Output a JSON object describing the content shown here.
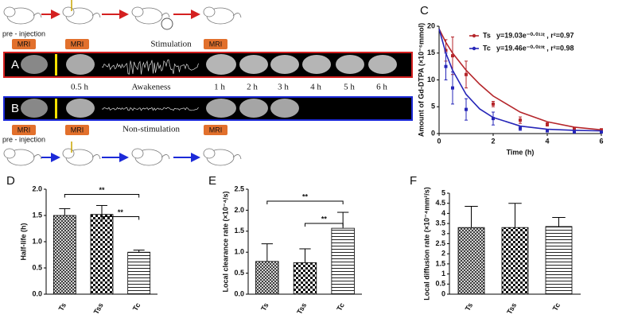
{
  "figure": {
    "panel_labels": [
      "A",
      "B",
      "C",
      "D",
      "E",
      "F"
    ],
    "protocol_top": {
      "pre_injection": "pre - injection",
      "stimulation": "Stimulation",
      "mri": [
        "MRI",
        "MRI",
        "MRI"
      ]
    },
    "row_a": {
      "time_labels": [
        "0.5 h",
        "1 h",
        "2 h",
        "3 h",
        "4 h",
        "5 h",
        "6 h"
      ],
      "state": "Awakeness"
    },
    "row_b": {
      "state": "Non-stimulation"
    },
    "protocol_bottom": {
      "pre_injection": "pre - injection",
      "mri": [
        "MRI",
        "MRI",
        "MRI"
      ]
    }
  },
  "chart_data": [
    {
      "type": "scatter",
      "x_label": "Time (h)",
      "y_label": "Amount of Gd-DTPA (×10⁻⁶mmol)",
      "xlim": [
        0,
        6
      ],
      "xticks": [
        0,
        2,
        4,
        6
      ],
      "ylim": [
        0,
        20
      ],
      "yticks": [
        0,
        5,
        10,
        15,
        20
      ],
      "x": [
        0.25,
        0.5,
        1,
        2,
        3,
        4,
        5,
        6
      ],
      "fit_x": [
        0,
        0.25,
        0.5,
        1,
        1.5,
        2,
        3,
        4,
        5,
        6
      ],
      "series": [
        {
          "name": "Ts",
          "fit_label": "y=19.03e⁻⁰·⁰¹¹ᵗ , r²=0.97",
          "color": "#b5262b",
          "values": [
            15.5,
            14.5,
            11,
            5.5,
            2.5,
            1.7,
            0.9,
            0.7
          ],
          "errors": [
            2,
            3.5,
            2.5,
            0.5,
            0.6,
            0.3,
            0.2,
            0.2
          ],
          "fit_values": [
            19.5,
            17,
            15,
            11.8,
            9.2,
            7,
            4,
            2.2,
            1.2,
            0.7
          ]
        },
        {
          "name": "Tc",
          "fit_label": "y=19.46e⁻⁰·⁰²³ᵗ , r²=0.98",
          "color": "#2626b8",
          "values": [
            12.5,
            8.5,
            4.5,
            2.8,
            1,
            0.5,
            0.3,
            0.3
          ],
          "errors": [
            2.5,
            3,
            2,
            1.2,
            0.4,
            0.2,
            0.1,
            0.1
          ],
          "fit_values": [
            19.5,
            15,
            11.8,
            7.3,
            4.6,
            3,
            1.4,
            0.8,
            0.6,
            0.5
          ]
        }
      ]
    },
    {
      "type": "bar",
      "y_label": "Half-life (h)",
      "categories": [
        "Ts",
        "Tss",
        "Tc"
      ],
      "values": [
        1.5,
        1.52,
        0.8
      ],
      "errors": [
        0.13,
        0.17,
        0.04
      ],
      "patterns": [
        "crosshatch",
        "checker",
        "stripes"
      ],
      "ylim": [
        0,
        2
      ],
      "yticks": [
        {
          "value": 0,
          "label": "0.0"
        },
        0.5,
        {
          "value": 1,
          "label": "1.0"
        },
        1.5,
        {
          "value": 2,
          "label": "2.0"
        }
      ],
      "significance": [
        {
          "pair": [
            "Ts",
            "Tc"
          ],
          "label": "**"
        },
        {
          "pair": [
            "Tss",
            "Tc"
          ],
          "label": "**"
        }
      ]
    },
    {
      "type": "bar",
      "y_label": "Local clearance rate (×10⁻⁴/s)",
      "categories": [
        "Ts",
        "Tss",
        "Tc"
      ],
      "values": [
        0.78,
        0.75,
        1.57
      ],
      "errors": [
        0.42,
        0.33,
        0.38
      ],
      "patterns": [
        "crosshatch",
        "checker",
        "stripes"
      ],
      "ylim": [
        0,
        2.5
      ],
      "yticks": [
        {
          "value": 0,
          "label": "0.0"
        },
        0.5,
        {
          "value": 1,
          "label": "1.0"
        },
        1.5,
        {
          "value": 2,
          "label": "2.0"
        },
        2.5
      ],
      "significance": [
        {
          "pair": [
            "Ts",
            "Tc"
          ],
          "label": "**"
        },
        {
          "pair": [
            "Tss",
            "Tc"
          ],
          "label": "**"
        }
      ]
    },
    {
      "type": "bar",
      "y_label": "Local diffusion rate (×10⁻⁴mm²/s)",
      "categories": [
        "Ts",
        "Tss",
        "Tc"
      ],
      "values": [
        3.3,
        3.3,
        3.35
      ],
      "errors": [
        1.05,
        1.2,
        0.45
      ],
      "patterns": [
        "crosshatch",
        "checker",
        "stripes"
      ],
      "ylim": [
        0,
        5
      ],
      "yticks": [
        0,
        0.5,
        1,
        1.5,
        2,
        2.5,
        3,
        3.5,
        4,
        4.5,
        5
      ],
      "significance": []
    }
  ]
}
